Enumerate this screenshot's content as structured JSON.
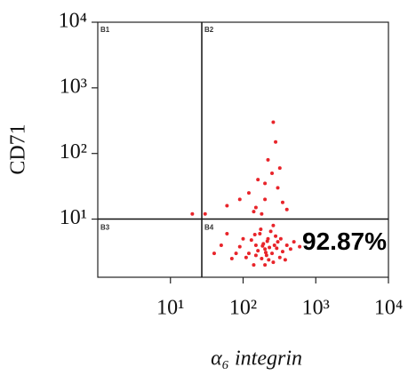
{
  "chart_data": {
    "type": "scatter",
    "xlabel": "α₆ integrin",
    "ylabel": "CD71",
    "xscale": "log",
    "yscale": "log",
    "xlim": [
      1,
      10000
    ],
    "ylim": [
      1.3,
      10000
    ],
    "xticks": [
      {
        "value": 10,
        "label": "10¹"
      },
      {
        "value": 100,
        "label": "10²"
      },
      {
        "value": 1000,
        "label": "10³"
      },
      {
        "value": 10000,
        "label": "10⁴"
      }
    ],
    "yticks": [
      {
        "value": 10,
        "label": "10¹"
      },
      {
        "value": 100,
        "label": "10²"
      },
      {
        "value": 1000,
        "label": "10³"
      },
      {
        "value": 10000,
        "label": "10⁴"
      }
    ],
    "gates": {
      "x": 27,
      "y": 10
    },
    "quadrant_labels": [
      "B1",
      "B2",
      "B3",
      "B4"
    ],
    "annotation": "92.87%",
    "series": [
      {
        "color": "#e8242a",
        "x": [
          200,
          150,
          250,
          180,
          300,
          120,
          220,
          170,
          260,
          350,
          90,
          400,
          140,
          280,
          210,
          190,
          230,
          160,
          320,
          130,
          450,
          240,
          110,
          270,
          200,
          175,
          330,
          150,
          500,
          205,
          100,
          260,
          380,
          145,
          225,
          290,
          80,
          600,
          185,
          215,
          150,
          200,
          300,
          250,
          180,
          120,
          350,
          220,
          280,
          160,
          400,
          90,
          260,
          200,
          320,
          140,
          60,
          30,
          40,
          20,
          50,
          70,
          60
        ],
        "y": [
          3.5,
          4,
          3,
          2.5,
          4.5,
          3,
          5,
          6,
          2.2,
          3.2,
          3.8,
          4,
          2,
          5.5,
          2.8,
          4.2,
          3.7,
          3.3,
          2.6,
          4.8,
          3.5,
          6.5,
          2.6,
          4,
          2,
          7,
          5,
          2.8,
          4.5,
          3.1,
          5,
          8,
          2.4,
          5.8,
          2.4,
          3.6,
          3,
          3.8,
          3.9,
          4.6,
          15,
          20,
          30,
          50,
          12,
          25,
          18,
          80,
          150,
          40,
          14,
          20,
          300,
          35,
          60,
          13,
          16,
          12,
          3,
          12,
          4,
          2.5,
          6
        ]
      }
    ]
  }
}
